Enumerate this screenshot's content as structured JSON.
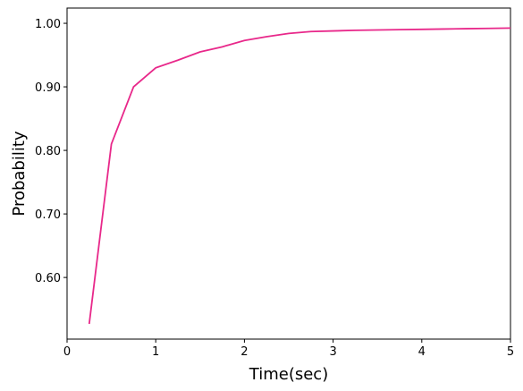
{
  "chart_data": {
    "type": "line",
    "x_label": "Time(sec)",
    "y_label": "Probability",
    "x": [
      0.25,
      0.5,
      0.75,
      1.0,
      1.25,
      1.5,
      1.75,
      2.0,
      2.25,
      2.5,
      2.75,
      3.0,
      3.25,
      3.5,
      3.75,
      4.0,
      4.25,
      4.5,
      4.75,
      5.0
    ],
    "series": [
      {
        "color": "#e8288a",
        "values": [
          0.527,
          0.81,
          0.9,
          0.93,
          0.942,
          0.955,
          0.963,
          0.973,
          0.979,
          0.984,
          0.987,
          0.988,
          0.989,
          0.9895,
          0.99,
          0.9905,
          0.991,
          0.9915,
          0.992,
          0.9925
        ]
      }
    ],
    "xlim": [
      0,
      5
    ],
    "xticks": [
      0,
      1,
      2,
      3,
      4,
      5
    ],
    "ylim": [
      0.503,
      1.024
    ],
    "yticks": [
      {
        "value": 0.6,
        "label": "0.60"
      },
      {
        "value": 0.7,
        "label": "0.70"
      },
      {
        "value": 0.8,
        "label": "0.80"
      },
      {
        "value": 0.9,
        "label": "0.90"
      },
      {
        "value": 1.0,
        "label": "1.00"
      }
    ]
  }
}
